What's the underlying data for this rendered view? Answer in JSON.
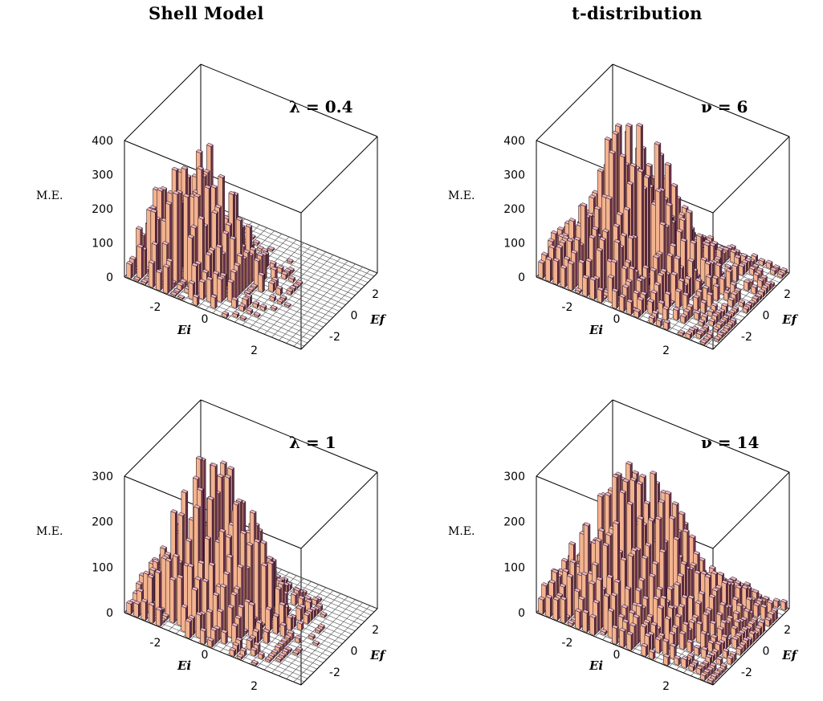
{
  "column_titles": {
    "left": "Shell Model",
    "right": "t-distribution"
  },
  "chart_data": [
    {
      "type": "bar3d",
      "column": "Shell Model",
      "parameter": {
        "symbol": "λ",
        "value": "0.4",
        "label": "λ = 0.4"
      },
      "zlabel": "M.E.",
      "xlabel": "Ei",
      "ylabel": "Ef",
      "zlim": [
        0,
        400
      ],
      "zticks": [
        "400",
        "300",
        "200",
        "100",
        "0"
      ],
      "xticks": [
        "-2",
        "0",
        "2"
      ],
      "yticks": [
        "2",
        "0",
        "-2"
      ],
      "grid_n": 24,
      "distribution": {
        "shape": "shell",
        "peak": 400,
        "sigma": 0.55,
        "offset": -0.55,
        "concentration": 0.45,
        "seed": 11
      }
    },
    {
      "type": "bar3d",
      "column": "t-distribution",
      "parameter": {
        "symbol": "ν",
        "value": "6",
        "label": "ν = 6"
      },
      "zlabel": "M.E.",
      "xlabel": "Ei",
      "ylabel": "Ef",
      "zlim": [
        0,
        400
      ],
      "zticks": [
        "400",
        "300",
        "200",
        "100",
        "0"
      ],
      "xticks": [
        "-2",
        "0",
        "2"
      ],
      "yticks": [
        "2",
        "0",
        "-2"
      ],
      "grid_n": 24,
      "distribution": {
        "shape": "t",
        "peak": 460,
        "sigma": 0.5,
        "offset": -0.3,
        "concentration": 0.55,
        "seed": 23
      }
    },
    {
      "type": "bar3d",
      "column": "Shell Model",
      "parameter": {
        "symbol": "λ",
        "value": "1",
        "label": "λ = 1"
      },
      "zlabel": "M.E.",
      "xlabel": "Ei",
      "ylabel": "Ef",
      "zlim": [
        0,
        300
      ],
      "zticks": [
        "300",
        "200",
        "100",
        "0"
      ],
      "xticks": [
        "-2",
        "0",
        "2"
      ],
      "yticks": [
        "2",
        "0",
        "-2"
      ],
      "grid_n": 24,
      "distribution": {
        "shape": "shell",
        "peak": 330,
        "sigma": 0.6,
        "offset": -0.35,
        "concentration": 0.5,
        "seed": 37
      }
    },
    {
      "type": "bar3d",
      "column": "t-distribution",
      "parameter": {
        "symbol": "ν",
        "value": "14",
        "label": "ν = 14"
      },
      "zlabel": "M.E.",
      "xlabel": "Ei",
      "ylabel": "Ef",
      "zlim": [
        0,
        300
      ],
      "zticks": [
        "300",
        "200",
        "100",
        "0"
      ],
      "xticks": [
        "-2",
        "0",
        "2"
      ],
      "yticks": [
        "2",
        "0",
        "-2"
      ],
      "grid_n": 24,
      "distribution": {
        "shape": "t",
        "peak": 320,
        "sigma": 0.58,
        "offset": -0.25,
        "concentration": 0.6,
        "seed": 53
      }
    }
  ]
}
